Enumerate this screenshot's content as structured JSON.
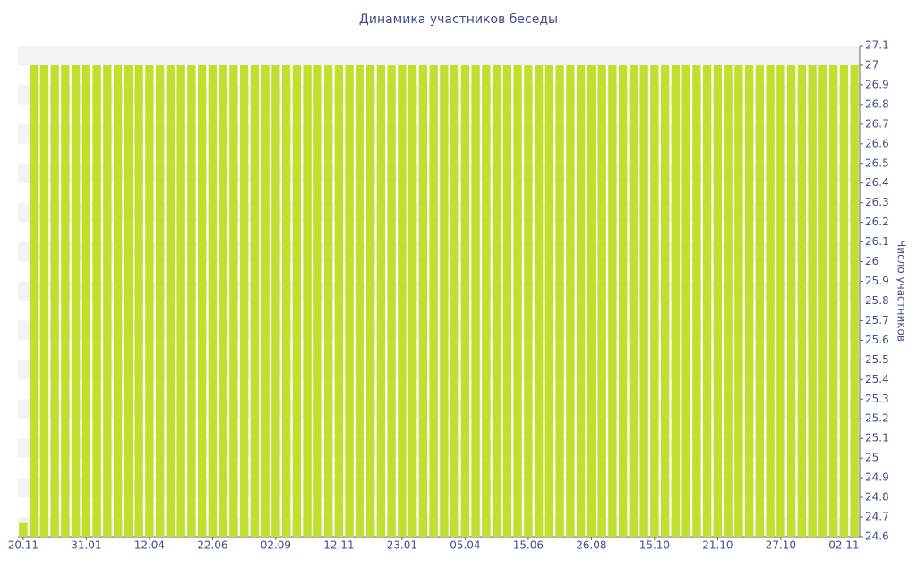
{
  "chart_data": {
    "type": "bar",
    "title": "Динамика участников беседы",
    "y_axis_label": "Число участников",
    "categories": [
      "20.11",
      null,
      null,
      null,
      null,
      null,
      "31.01",
      null,
      null,
      null,
      null,
      null,
      "12.04",
      null,
      null,
      null,
      null,
      null,
      "22.06",
      null,
      null,
      null,
      null,
      null,
      "02.09",
      null,
      null,
      null,
      null,
      null,
      "12.11",
      null,
      null,
      null,
      null,
      null,
      "23.01",
      null,
      null,
      null,
      null,
      null,
      "05.04",
      null,
      null,
      null,
      null,
      null,
      "15.06",
      null,
      null,
      null,
      null,
      null,
      "26.08",
      null,
      null,
      null,
      null,
      null,
      "15.10",
      null,
      null,
      null,
      null,
      null,
      "21.10",
      null,
      null,
      null,
      null,
      null,
      "27.10",
      null,
      null,
      null,
      null,
      null,
      "02.11",
      null
    ],
    "values": [
      24.67,
      27,
      27,
      27,
      27,
      27,
      27,
      27,
      27,
      27,
      27,
      27,
      27,
      27,
      27,
      27,
      27,
      27,
      27,
      27,
      27,
      27,
      27,
      27,
      27,
      27,
      27,
      27,
      27,
      27,
      27,
      27,
      27,
      27,
      27,
      27,
      27,
      27,
      27,
      27,
      27,
      27,
      27,
      27,
      27,
      27,
      27,
      27,
      27,
      27,
      27,
      27,
      27,
      27,
      27,
      27,
      27,
      27,
      27,
      27,
      27,
      27,
      27,
      27,
      27,
      27,
      27,
      27,
      27,
      27,
      27,
      27,
      27,
      27,
      27,
      27,
      27,
      27,
      27,
      27
    ],
    "color": "#c0e030",
    "ylim": [
      24.6,
      27.1
    ],
    "yticks": [
      24.6,
      24.7,
      24.8,
      24.9,
      25,
      25.1,
      25.2,
      25.3,
      25.4,
      25.5,
      25.6,
      25.7,
      25.8,
      25.9,
      26,
      26.1,
      26.2,
      26.3,
      26.4,
      26.5,
      26.6,
      26.7,
      26.8,
      26.9,
      27,
      27.1
    ],
    "y_axis_side": "right"
  }
}
